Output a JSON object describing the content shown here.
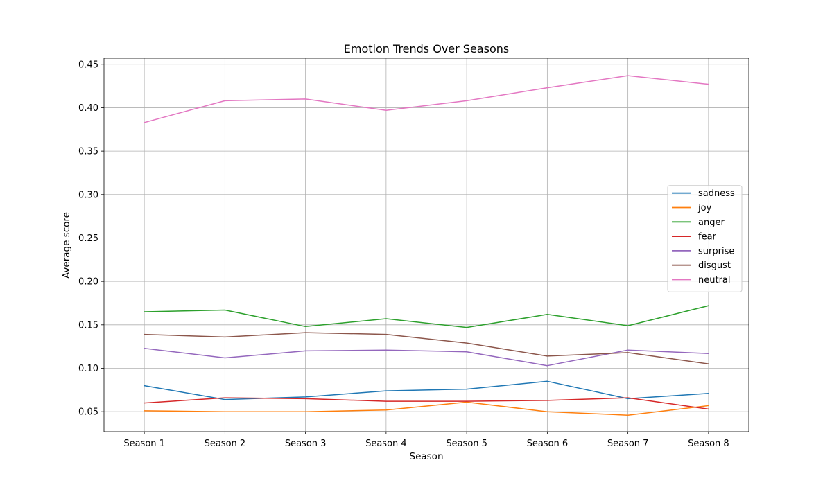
{
  "chart_data": {
    "type": "line",
    "title": "Emotion Trends Over Seasons",
    "xlabel": "Season",
    "ylabel": "Average score",
    "categories": [
      "Season 1",
      "Season 2",
      "Season 3",
      "Season 4",
      "Season 5",
      "Season 6",
      "Season 7",
      "Season 8"
    ],
    "ylim": [
      0.027,
      0.457
    ],
    "yticks": [
      0.05,
      0.1,
      0.15,
      0.2,
      0.25,
      0.3,
      0.35,
      0.4,
      0.45
    ],
    "ytick_labels": [
      "0.05",
      "0.10",
      "0.15",
      "0.20",
      "0.25",
      "0.30",
      "0.35",
      "0.40",
      "0.45"
    ],
    "grid": true,
    "legend_position": "center-right",
    "series": [
      {
        "name": "sadness",
        "color": "#1f77b4",
        "values": [
          0.08,
          0.064,
          0.067,
          0.074,
          0.076,
          0.085,
          0.065,
          0.071
        ]
      },
      {
        "name": "joy",
        "color": "#ff7f0e",
        "values": [
          0.051,
          0.05,
          0.05,
          0.052,
          0.061,
          0.05,
          0.046,
          0.057
        ]
      },
      {
        "name": "anger",
        "color": "#2ca02c",
        "values": [
          0.165,
          0.167,
          0.148,
          0.157,
          0.147,
          0.162,
          0.149,
          0.172
        ]
      },
      {
        "name": "fear",
        "color": "#d62728",
        "values": [
          0.06,
          0.066,
          0.065,
          0.062,
          0.062,
          0.063,
          0.066,
          0.053
        ]
      },
      {
        "name": "surprise",
        "color": "#9467bd",
        "values": [
          0.123,
          0.112,
          0.12,
          0.121,
          0.119,
          0.103,
          0.121,
          0.117
        ]
      },
      {
        "name": "disgust",
        "color": "#8c564b",
        "values": [
          0.139,
          0.136,
          0.141,
          0.139,
          0.129,
          0.114,
          0.118,
          0.105
        ]
      },
      {
        "name": "neutral",
        "color": "#e377c2",
        "values": [
          0.383,
          0.408,
          0.41,
          0.397,
          0.408,
          0.423,
          0.437,
          0.427
        ]
      }
    ]
  }
}
